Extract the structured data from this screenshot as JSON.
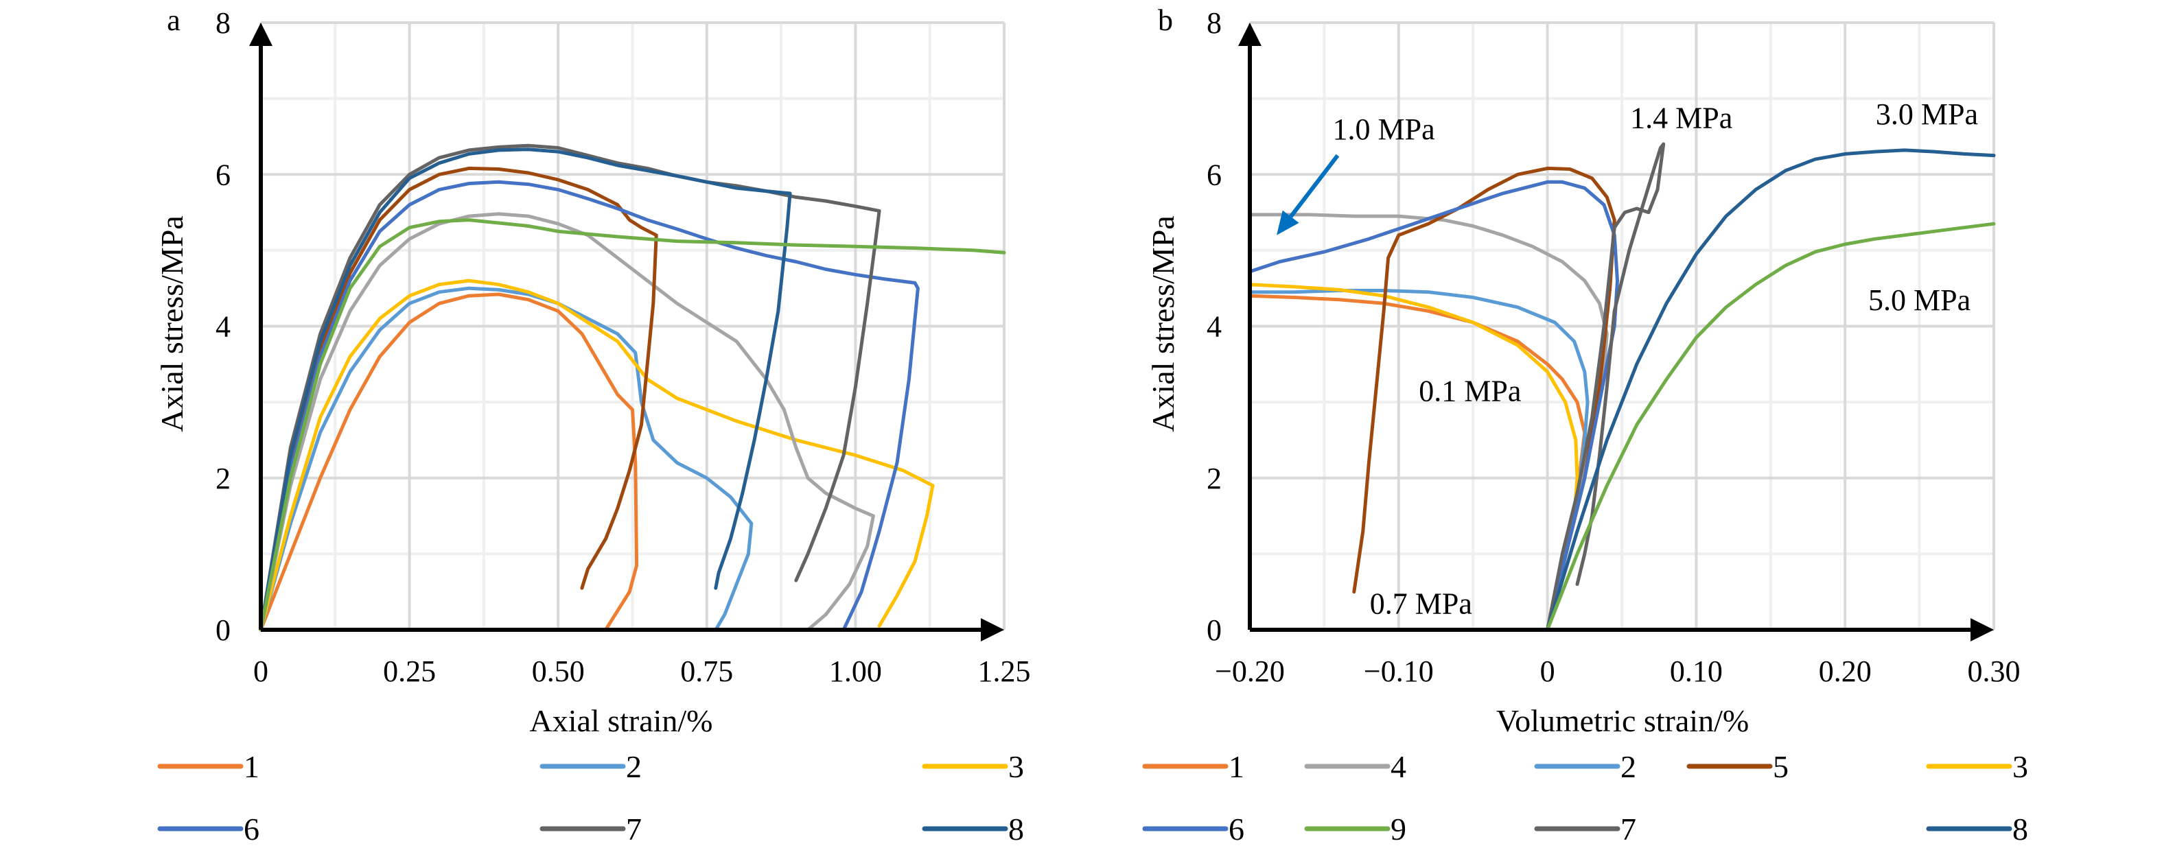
{
  "figure": {
    "colors": {
      "1": "#ED7D31",
      "2": "#5B9BD5",
      "3": "#FFC000",
      "4": "#A5A5A5",
      "5": "#9E480E",
      "6": "#4472C4",
      "7": "#636363",
      "8": "#255E91",
      "9": "#70AD47",
      "arrow": "#0070C0"
    }
  },
  "chart_data": [
    {
      "panel_label": "a",
      "type": "line",
      "title": "",
      "xlabel": "Axial strain/%",
      "ylabel": "Axial stress/MPa",
      "xlim": [
        0,
        1.25
      ],
      "ylim": [
        0,
        8
      ],
      "xticks": [
        0,
        0.25,
        0.5,
        0.75,
        1.0,
        1.25
      ],
      "xtick_labels": [
        "0",
        "0.25",
        "0.50",
        "0.75",
        "1.00",
        "1.25"
      ],
      "yticks": [
        0,
        2,
        4,
        6,
        8
      ],
      "ytick_labels": [
        "0",
        "2",
        "4",
        "6",
        "8"
      ],
      "grid": true,
      "legend_position": "bottom",
      "series": [
        {
          "name": "1",
          "x": [
            0,
            0.05,
            0.1,
            0.15,
            0.2,
            0.25,
            0.3,
            0.35,
            0.4,
            0.45,
            0.5,
            0.54,
            0.57,
            0.6,
            0.625,
            0.63,
            0.632,
            0.62,
            0.6,
            0.58
          ],
          "y": [
            0,
            1.0,
            2.0,
            2.9,
            3.6,
            4.05,
            4.3,
            4.4,
            4.42,
            4.35,
            4.2,
            3.9,
            3.5,
            3.1,
            2.9,
            2.2,
            0.85,
            0.5,
            0.25,
            0
          ]
        },
        {
          "name": "2",
          "x": [
            0,
            0.05,
            0.1,
            0.15,
            0.2,
            0.25,
            0.3,
            0.35,
            0.4,
            0.45,
            0.5,
            0.55,
            0.6,
            0.63,
            0.64,
            0.66,
            0.7,
            0.75,
            0.79,
            0.81,
            0.825,
            0.82,
            0.8,
            0.78,
            0.765
          ],
          "y": [
            0,
            1.4,
            2.6,
            3.4,
            3.95,
            4.3,
            4.45,
            4.5,
            4.48,
            4.42,
            4.3,
            4.1,
            3.9,
            3.65,
            3.0,
            2.5,
            2.2,
            2.0,
            1.75,
            1.55,
            1.4,
            1.0,
            0.6,
            0.2,
            0
          ]
        },
        {
          "name": "3",
          "x": [
            0,
            0.05,
            0.1,
            0.15,
            0.2,
            0.25,
            0.3,
            0.35,
            0.4,
            0.45,
            0.5,
            0.55,
            0.6,
            0.65,
            0.7,
            0.8,
            0.9,
            1.0,
            1.08,
            1.13,
            1.12,
            1.1,
            1.07,
            1.04
          ],
          "y": [
            0,
            1.5,
            2.8,
            3.6,
            4.1,
            4.4,
            4.55,
            4.6,
            4.55,
            4.45,
            4.3,
            4.05,
            3.8,
            3.3,
            3.05,
            2.75,
            2.5,
            2.3,
            2.1,
            1.9,
            1.5,
            0.9,
            0.45,
            0.05
          ]
        },
        {
          "name": "4",
          "x": [
            0,
            0.05,
            0.1,
            0.15,
            0.2,
            0.25,
            0.3,
            0.35,
            0.4,
            0.45,
            0.5,
            0.55,
            0.6,
            0.65,
            0.7,
            0.75,
            0.8,
            0.85,
            0.88,
            0.9,
            0.92,
            0.95,
            1.0,
            1.03,
            1.02,
            0.99,
            0.95,
            0.92
          ],
          "y": [
            0,
            1.9,
            3.3,
            4.2,
            4.8,
            5.15,
            5.35,
            5.45,
            5.48,
            5.45,
            5.35,
            5.2,
            4.9,
            4.6,
            4.3,
            4.05,
            3.8,
            3.3,
            2.9,
            2.4,
            2.0,
            1.8,
            1.6,
            1.5,
            1.1,
            0.6,
            0.2,
            0
          ]
        },
        {
          "name": "5",
          "x": [
            0,
            0.05,
            0.1,
            0.15,
            0.2,
            0.25,
            0.3,
            0.35,
            0.4,
            0.45,
            0.5,
            0.55,
            0.6,
            0.62,
            0.64,
            0.665,
            0.66,
            0.65,
            0.64,
            0.62,
            0.6,
            0.58,
            0.55,
            0.54
          ],
          "y": [
            0,
            2.2,
            3.7,
            4.7,
            5.4,
            5.8,
            6.0,
            6.08,
            6.07,
            6.02,
            5.93,
            5.8,
            5.6,
            5.4,
            5.3,
            5.2,
            4.3,
            3.5,
            2.7,
            2.1,
            1.6,
            1.2,
            0.8,
            0.55
          ]
        },
        {
          "name": "6",
          "x": [
            0,
            0.05,
            0.1,
            0.15,
            0.2,
            0.25,
            0.3,
            0.35,
            0.4,
            0.45,
            0.5,
            0.55,
            0.6,
            0.65,
            0.7,
            0.75,
            0.8,
            0.85,
            0.9,
            0.95,
            1.0,
            1.05,
            1.1,
            1.105,
            1.09,
            1.07,
            1.04,
            1.01,
            0.98
          ],
          "y": [
            0,
            2.1,
            3.6,
            4.6,
            5.25,
            5.6,
            5.8,
            5.88,
            5.9,
            5.87,
            5.8,
            5.68,
            5.55,
            5.4,
            5.28,
            5.15,
            5.03,
            4.93,
            4.85,
            4.75,
            4.68,
            4.62,
            4.57,
            4.5,
            3.3,
            2.2,
            1.3,
            0.5,
            0
          ]
        },
        {
          "name": "7",
          "x": [
            0,
            0.05,
            0.1,
            0.15,
            0.2,
            0.25,
            0.3,
            0.35,
            0.4,
            0.45,
            0.5,
            0.55,
            0.6,
            0.65,
            0.7,
            0.75,
            0.8,
            0.85,
            0.9,
            0.95,
            1.0,
            1.04,
            1.035,
            1.02,
            1.0,
            0.98,
            0.95,
            0.92,
            0.9
          ],
          "y": [
            0,
            2.4,
            3.9,
            4.9,
            5.6,
            6.0,
            6.22,
            6.32,
            6.36,
            6.38,
            6.35,
            6.25,
            6.15,
            6.08,
            5.98,
            5.9,
            5.85,
            5.78,
            5.7,
            5.65,
            5.58,
            5.52,
            5.2,
            4.3,
            3.2,
            2.3,
            1.6,
            1.0,
            0.65
          ]
        },
        {
          "name": "8",
          "x": [
            0,
            0.05,
            0.1,
            0.15,
            0.2,
            0.25,
            0.3,
            0.35,
            0.4,
            0.45,
            0.5,
            0.55,
            0.6,
            0.65,
            0.7,
            0.75,
            0.8,
            0.85,
            0.89,
            0.885,
            0.87,
            0.85,
            0.83,
            0.81,
            0.79,
            0.77,
            0.765
          ],
          "y": [
            0,
            2.3,
            3.8,
            4.8,
            5.5,
            5.95,
            6.15,
            6.27,
            6.32,
            6.33,
            6.3,
            6.22,
            6.12,
            6.05,
            5.98,
            5.9,
            5.82,
            5.78,
            5.75,
            5.3,
            4.2,
            3.3,
            2.5,
            1.8,
            1.2,
            0.75,
            0.55
          ]
        },
        {
          "name": "9",
          "x": [
            0,
            0.05,
            0.1,
            0.15,
            0.2,
            0.25,
            0.3,
            0.35,
            0.4,
            0.45,
            0.5,
            0.6,
            0.7,
            0.8,
            0.9,
            1.0,
            1.1,
            1.2,
            1.25
          ],
          "y": [
            0,
            2.0,
            3.5,
            4.5,
            5.05,
            5.3,
            5.38,
            5.4,
            5.36,
            5.32,
            5.25,
            5.18,
            5.12,
            5.1,
            5.07,
            5.05,
            5.03,
            5.0,
            4.97
          ]
        }
      ]
    },
    {
      "panel_label": "b",
      "type": "line",
      "title": "",
      "xlabel": "Volumetric strain/%",
      "ylabel": "Axial stress/MPa",
      "xlim": [
        -0.2,
        0.3
      ],
      "ylim": [
        0,
        8
      ],
      "xticks": [
        -0.2,
        -0.1,
        0,
        0.1,
        0.2,
        0.3
      ],
      "xtick_labels": [
        "−0.20",
        "−0.10",
        "0",
        "0.10",
        "0.20",
        "0.30"
      ],
      "yticks": [
        0,
        2,
        4,
        6,
        8
      ],
      "ytick_labels": [
        "0",
        "2",
        "4",
        "6",
        "8"
      ],
      "grid": true,
      "legend_position": "bottom",
      "annotations": [
        {
          "text": "1.0 MPa",
          "x": -0.11,
          "y": 6.6,
          "arrow_to": [
            -0.182,
            5.2
          ],
          "arrow_from": [
            -0.141,
            6.25
          ]
        },
        {
          "text": "1.4 MPa",
          "x": 0.09,
          "y": 6.75
        },
        {
          "text": "3.0 MPa",
          "x": 0.255,
          "y": 6.8
        },
        {
          "text": "5.0 MPa",
          "x": 0.25,
          "y": 4.35
        },
        {
          "text": "0.1 MPa",
          "x": -0.052,
          "y": 3.15
        },
        {
          "text": "0.7 MPa",
          "x": -0.085,
          "y": 0.35
        }
      ],
      "series": [
        {
          "name": "1",
          "x": [
            0,
            0.01,
            0.02,
            0.025,
            0.02,
            0.01,
            0.0,
            -0.02,
            -0.05,
            -0.08,
            -0.11,
            -0.14,
            -0.17,
            -0.2
          ],
          "y": [
            0,
            0.8,
            1.8,
            2.6,
            3.0,
            3.3,
            3.5,
            3.8,
            4.05,
            4.2,
            4.3,
            4.35,
            4.38,
            4.4
          ]
        },
        {
          "name": "2",
          "x": [
            0,
            0.01,
            0.02,
            0.025,
            0.027,
            0.025,
            0.018,
            0.005,
            -0.02,
            -0.05,
            -0.08,
            -0.11,
            -0.14,
            -0.17,
            -0.2
          ],
          "y": [
            0,
            0.8,
            1.7,
            2.5,
            3.0,
            3.4,
            3.8,
            4.05,
            4.25,
            4.38,
            4.45,
            4.47,
            4.47,
            4.45,
            4.45
          ]
        },
        {
          "name": "3",
          "x": [
            0,
            0.01,
            0.018,
            0.02,
            0.019,
            0.012,
            0.0,
            -0.02,
            -0.05,
            -0.08,
            -0.11,
            -0.14,
            -0.17,
            -0.2
          ],
          "y": [
            0,
            0.8,
            1.5,
            2.0,
            2.5,
            3.0,
            3.4,
            3.75,
            4.05,
            4.25,
            4.4,
            4.48,
            4.52,
            4.55
          ]
        },
        {
          "name": "4",
          "x": [
            0,
            0.01,
            0.02,
            0.03,
            0.038,
            0.04,
            0.035,
            0.025,
            0.01,
            -0.01,
            -0.03,
            -0.05,
            -0.07,
            -0.1,
            -0.13,
            -0.16,
            -0.2
          ],
          "y": [
            0,
            0.8,
            1.7,
            2.6,
            3.4,
            3.9,
            4.3,
            4.6,
            4.85,
            5.05,
            5.2,
            5.32,
            5.4,
            5.45,
            5.45,
            5.47,
            5.47
          ]
        },
        {
          "name": "5",
          "x": [
            0,
            0.01,
            0.025,
            0.035,
            0.042,
            0.045,
            0.04,
            0.03,
            0.015,
            0.0,
            -0.02,
            -0.04,
            -0.06,
            -0.08,
            -0.1,
            -0.107,
            -0.11,
            -0.115,
            -0.12,
            -0.124,
            -0.127,
            -0.13
          ],
          "y": [
            0,
            0.8,
            2.0,
            3.2,
            4.5,
            5.4,
            5.7,
            5.95,
            6.07,
            6.08,
            6.0,
            5.8,
            5.55,
            5.35,
            5.2,
            4.9,
            4.2,
            3.2,
            2.2,
            1.3,
            0.9,
            0.5
          ]
        },
        {
          "name": "6",
          "x": [
            0,
            0.01,
            0.025,
            0.035,
            0.045,
            0.047,
            0.045,
            0.038,
            0.025,
            0.01,
            0.0,
            -0.03,
            -0.06,
            -0.09,
            -0.12,
            -0.15,
            -0.18,
            -0.2
          ],
          "y": [
            0,
            0.8,
            2.0,
            3.0,
            4.0,
            4.6,
            5.2,
            5.6,
            5.82,
            5.9,
            5.9,
            5.75,
            5.55,
            5.35,
            5.15,
            4.98,
            4.85,
            4.72
          ]
        },
        {
          "name": "7",
          "x": [
            0.02,
            0.025,
            0.03,
            0.035,
            0.04,
            0.045,
            0.055,
            0.065,
            0.072,
            0.076,
            0.078,
            0.074,
            0.068,
            0.06,
            0.052,
            0.045,
            0.038,
            0.03,
            0.02,
            0.01,
            0
          ],
          "y": [
            0.6,
            1.0,
            1.5,
            2.3,
            3.2,
            4.2,
            5.0,
            5.65,
            6.1,
            6.35,
            6.4,
            5.8,
            5.5,
            5.55,
            5.5,
            5.3,
            4.0,
            2.8,
            1.8,
            1.0,
            0
          ]
        },
        {
          "name": "8",
          "x": [
            0,
            0.02,
            0.04,
            0.06,
            0.08,
            0.1,
            0.12,
            0.14,
            0.16,
            0.18,
            0.2,
            0.22,
            0.24,
            0.26,
            0.28,
            0.3
          ],
          "y": [
            0,
            1.3,
            2.5,
            3.5,
            4.3,
            4.95,
            5.45,
            5.8,
            6.05,
            6.2,
            6.27,
            6.3,
            6.32,
            6.3,
            6.27,
            6.25
          ]
        },
        {
          "name": "9",
          "x": [
            0,
            0.02,
            0.04,
            0.06,
            0.08,
            0.1,
            0.12,
            0.14,
            0.16,
            0.18,
            0.2,
            0.22,
            0.24,
            0.26,
            0.28,
            0.3
          ],
          "y": [
            0,
            1.0,
            1.9,
            2.7,
            3.3,
            3.85,
            4.25,
            4.55,
            4.8,
            4.98,
            5.08,
            5.15,
            5.2,
            5.25,
            5.3,
            5.35
          ]
        }
      ]
    }
  ],
  "legend": {
    "row1": [
      "1",
      "2",
      "3",
      "4",
      "5"
    ],
    "row2": [
      "6",
      "7",
      "8",
      "9"
    ]
  }
}
